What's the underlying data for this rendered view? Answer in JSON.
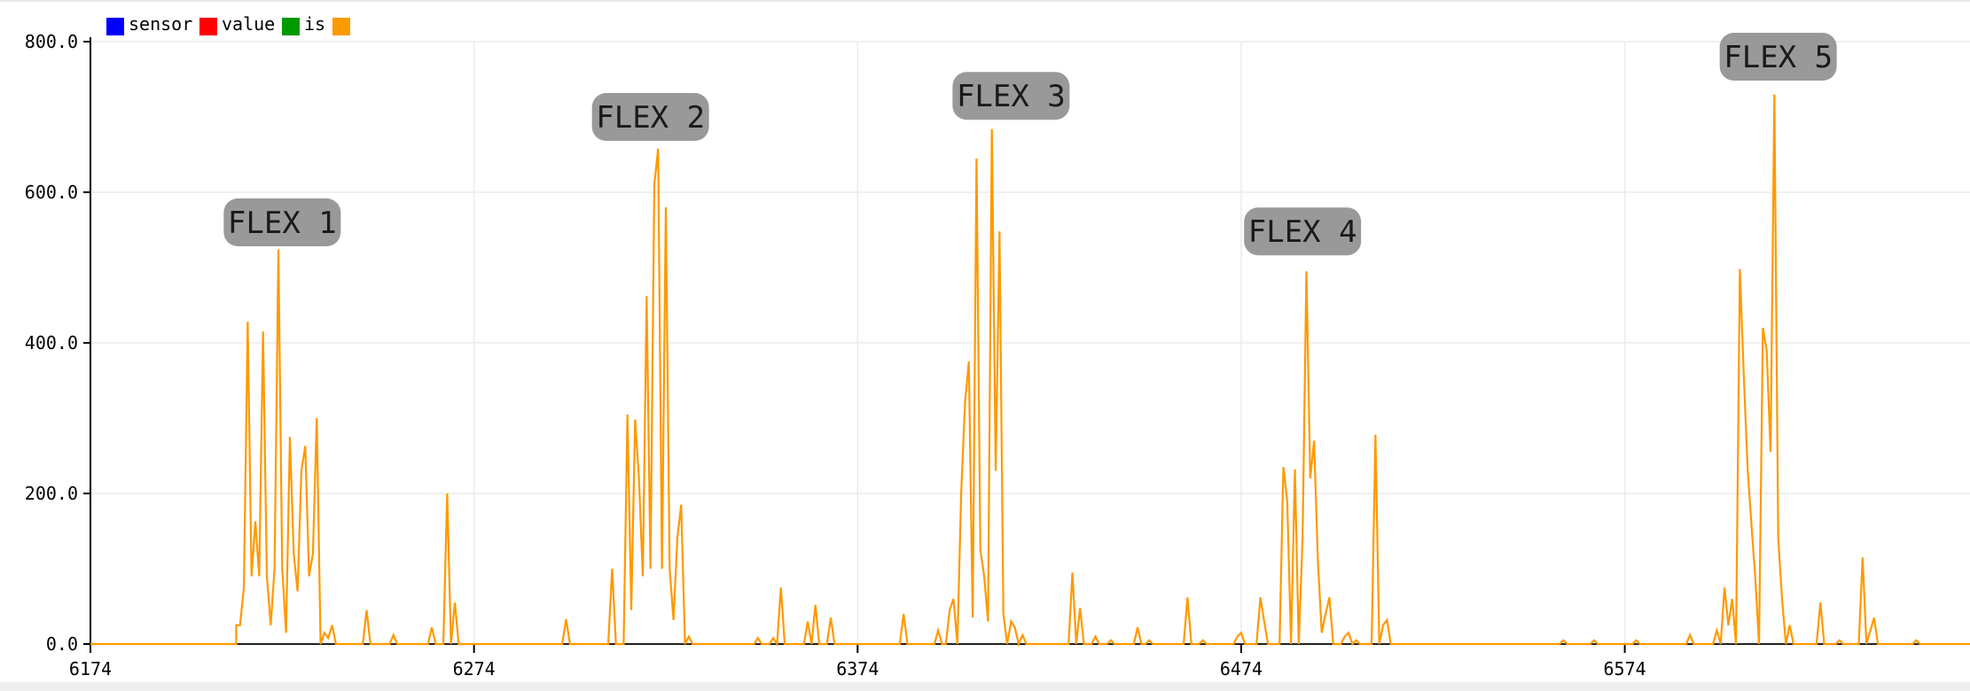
{
  "colors": {
    "sensor": "#0000ff",
    "value": "#ff0000",
    "is": "#009900",
    "series_4": "#ff9900",
    "grid": "#ebebeb",
    "axis": "#000000",
    "annotation_bg": "#999999"
  },
  "legend": {
    "items": [
      {
        "label": "sensor",
        "color": "#0000ff"
      },
      {
        "label": "value",
        "color": "#ff0000"
      },
      {
        "label": "is",
        "color": "#009900"
      },
      {
        "label": "",
        "color": "#ff9900"
      }
    ]
  },
  "chart_data": {
    "type": "line",
    "title": "",
    "xlabel": "",
    "ylabel": "",
    "xlim": [
      6174,
      6664
    ],
    "ylim": [
      0,
      800
    ],
    "grid": true,
    "legend_position": "top-left",
    "x_ticks": [
      6174,
      6274,
      6374,
      6474,
      6574
    ],
    "x_tick_labels": [
      "6174",
      "6274",
      "6374",
      "6474",
      "6574"
    ],
    "y_ticks": [
      0,
      200,
      400,
      600,
      800
    ],
    "y_tick_labels": [
      "0.0",
      "200.0",
      "400.0",
      "600.0",
      "800.0"
    ],
    "annotations": [
      {
        "text": "FLEX 1",
        "x": 6224,
        "y": 560
      },
      {
        "text": "FLEX 2",
        "x": 6320,
        "y": 700
      },
      {
        "text": "FLEX 3",
        "x": 6414,
        "y": 728
      },
      {
        "text": "FLEX 4",
        "x": 6490,
        "y": 548
      },
      {
        "text": "FLEX 5",
        "x": 6614,
        "y": 780
      }
    ],
    "series": [
      {
        "name": "",
        "color": "#ff9900",
        "points": [
          [
            6174,
            0
          ],
          [
            6212,
            0
          ],
          [
            6212,
            25
          ],
          [
            6213,
            25
          ],
          [
            6214,
            75
          ],
          [
            6215,
            428
          ],
          [
            6216,
            90
          ],
          [
            6217,
            163
          ],
          [
            6218,
            90
          ],
          [
            6219,
            415
          ],
          [
            6220,
            90
          ],
          [
            6221,
            25
          ],
          [
            6222,
            100
          ],
          [
            6223,
            524
          ],
          [
            6224,
            100
          ],
          [
            6225,
            15
          ],
          [
            6226,
            275
          ],
          [
            6227,
            120
          ],
          [
            6228,
            70
          ],
          [
            6229,
            230
          ],
          [
            6230,
            263
          ],
          [
            6231,
            90
          ],
          [
            6232,
            120
          ],
          [
            6233,
            300
          ],
          [
            6234,
            0
          ],
          [
            6235,
            15
          ],
          [
            6236,
            8
          ],
          [
            6237,
            25
          ],
          [
            6238,
            0
          ],
          [
            6245,
            0
          ],
          [
            6246,
            45
          ],
          [
            6247,
            0
          ],
          [
            6252,
            0
          ],
          [
            6253,
            12
          ],
          [
            6254,
            0
          ],
          [
            6262,
            0
          ],
          [
            6263,
            22
          ],
          [
            6264,
            0
          ],
          [
            6266,
            0
          ],
          [
            6267,
            200
          ],
          [
            6268,
            0
          ],
          [
            6269,
            55
          ],
          [
            6270,
            0
          ],
          [
            6297,
            0
          ],
          [
            6298,
            33
          ],
          [
            6299,
            0
          ],
          [
            6309,
            0
          ],
          [
            6310,
            100
          ],
          [
            6311,
            0
          ],
          [
            6313,
            0
          ],
          [
            6314,
            305
          ],
          [
            6315,
            45
          ],
          [
            6316,
            298
          ],
          [
            6317,
            220
          ],
          [
            6318,
            90
          ],
          [
            6319,
            462
          ],
          [
            6320,
            100
          ],
          [
            6321,
            610
          ],
          [
            6322,
            658
          ],
          [
            6323,
            100
          ],
          [
            6324,
            580
          ],
          [
            6325,
            100
          ],
          [
            6326,
            32
          ],
          [
            6327,
            140
          ],
          [
            6328,
            185
          ],
          [
            6329,
            0
          ],
          [
            6330,
            10
          ],
          [
            6331,
            0
          ],
          [
            6347,
            0
          ],
          [
            6348,
            8
          ],
          [
            6349,
            0
          ],
          [
            6351,
            0
          ],
          [
            6352,
            8
          ],
          [
            6353,
            0
          ],
          [
            6354,
            75
          ],
          [
            6355,
            0
          ],
          [
            6360,
            0
          ],
          [
            6361,
            30
          ],
          [
            6362,
            0
          ],
          [
            6363,
            52
          ],
          [
            6364,
            0
          ],
          [
            6366,
            0
          ],
          [
            6367,
            35
          ],
          [
            6368,
            0
          ],
          [
            6385,
            0
          ],
          [
            6386,
            40
          ],
          [
            6387,
            0
          ],
          [
            6394,
            0
          ],
          [
            6395,
            18
          ],
          [
            6396,
            0
          ],
          [
            6397,
            0
          ],
          [
            6398,
            45
          ],
          [
            6399,
            60
          ],
          [
            6400,
            0
          ],
          [
            6401,
            200
          ],
          [
            6402,
            320
          ],
          [
            6403,
            375
          ],
          [
            6404,
            35
          ],
          [
            6405,
            645
          ],
          [
            6406,
            125
          ],
          [
            6407,
            90
          ],
          [
            6408,
            30
          ],
          [
            6409,
            684
          ],
          [
            6410,
            230
          ],
          [
            6411,
            548
          ],
          [
            6412,
            40
          ],
          [
            6413,
            0
          ],
          [
            6414,
            30
          ],
          [
            6415,
            22
          ],
          [
            6416,
            0
          ],
          [
            6417,
            12
          ],
          [
            6418,
            0
          ],
          [
            6429,
            0
          ],
          [
            6430,
            95
          ],
          [
            6431,
            0
          ],
          [
            6432,
            48
          ],
          [
            6433,
            0
          ],
          [
            6435,
            0
          ],
          [
            6436,
            10
          ],
          [
            6437,
            0
          ],
          [
            6439,
            0
          ],
          [
            6440,
            5
          ],
          [
            6441,
            0
          ],
          [
            6446,
            0
          ],
          [
            6447,
            22
          ],
          [
            6448,
            0
          ],
          [
            6449,
            0
          ],
          [
            6450,
            5
          ],
          [
            6451,
            0
          ],
          [
            6459,
            0
          ],
          [
            6460,
            62
          ],
          [
            6461,
            0
          ],
          [
            6463,
            0
          ],
          [
            6464,
            5
          ],
          [
            6465,
            0
          ],
          [
            6472,
            0
          ],
          [
            6473,
            10
          ],
          [
            6474,
            15
          ],
          [
            6475,
            0
          ],
          [
            6478,
            0
          ],
          [
            6479,
            62
          ],
          [
            6480,
            30
          ],
          [
            6481,
            0
          ],
          [
            6484,
            0
          ],
          [
            6485,
            235
          ],
          [
            6486,
            190
          ],
          [
            6487,
            0
          ],
          [
            6488,
            232
          ],
          [
            6489,
            0
          ],
          [
            6490,
            140
          ],
          [
            6491,
            495
          ],
          [
            6492,
            220
          ],
          [
            6493,
            270
          ],
          [
            6494,
            110
          ],
          [
            6495,
            15
          ],
          [
            6496,
            40
          ],
          [
            6497,
            62
          ],
          [
            6498,
            0
          ],
          [
            6500,
            0
          ],
          [
            6501,
            10
          ],
          [
            6502,
            15
          ],
          [
            6503,
            0
          ],
          [
            6504,
            5
          ],
          [
            6505,
            0
          ],
          [
            6508,
            0
          ],
          [
            6509,
            278
          ],
          [
            6510,
            0
          ],
          [
            6511,
            25
          ],
          [
            6512,
            32
          ],
          [
            6513,
            0
          ],
          [
            6557,
            0
          ],
          [
            6558,
            5
          ],
          [
            6559,
            0
          ],
          [
            6565,
            0
          ],
          [
            6566,
            5
          ],
          [
            6567,
            0
          ],
          [
            6576,
            0
          ],
          [
            6577,
            5
          ],
          [
            6578,
            0
          ],
          [
            6590,
            0
          ],
          [
            6591,
            12
          ],
          [
            6592,
            0
          ],
          [
            6597,
            0
          ],
          [
            6598,
            18
          ],
          [
            6599,
            0
          ],
          [
            6600,
            75
          ],
          [
            6601,
            25
          ],
          [
            6602,
            60
          ],
          [
            6603,
            0
          ],
          [
            6604,
            498
          ],
          [
            6605,
            360
          ],
          [
            6606,
            235
          ],
          [
            6607,
            160
          ],
          [
            6608,
            90
          ],
          [
            6609,
            0
          ],
          [
            6610,
            420
          ],
          [
            6611,
            390
          ],
          [
            6612,
            255
          ],
          [
            6613,
            730
          ],
          [
            6614,
            140
          ],
          [
            6615,
            60
          ],
          [
            6616,
            0
          ],
          [
            6617,
            25
          ],
          [
            6618,
            0
          ],
          [
            6624,
            0
          ],
          [
            6625,
            55
          ],
          [
            6626,
            0
          ],
          [
            6629,
            0
          ],
          [
            6630,
            5
          ],
          [
            6631,
            0
          ],
          [
            6635,
            0
          ],
          [
            6636,
            115
          ],
          [
            6637,
            0
          ],
          [
            6639,
            35
          ],
          [
            6640,
            0
          ],
          [
            6649,
            0
          ],
          [
            6650,
            5
          ],
          [
            6651,
            0
          ],
          [
            6664,
            0
          ]
        ]
      }
    ]
  }
}
